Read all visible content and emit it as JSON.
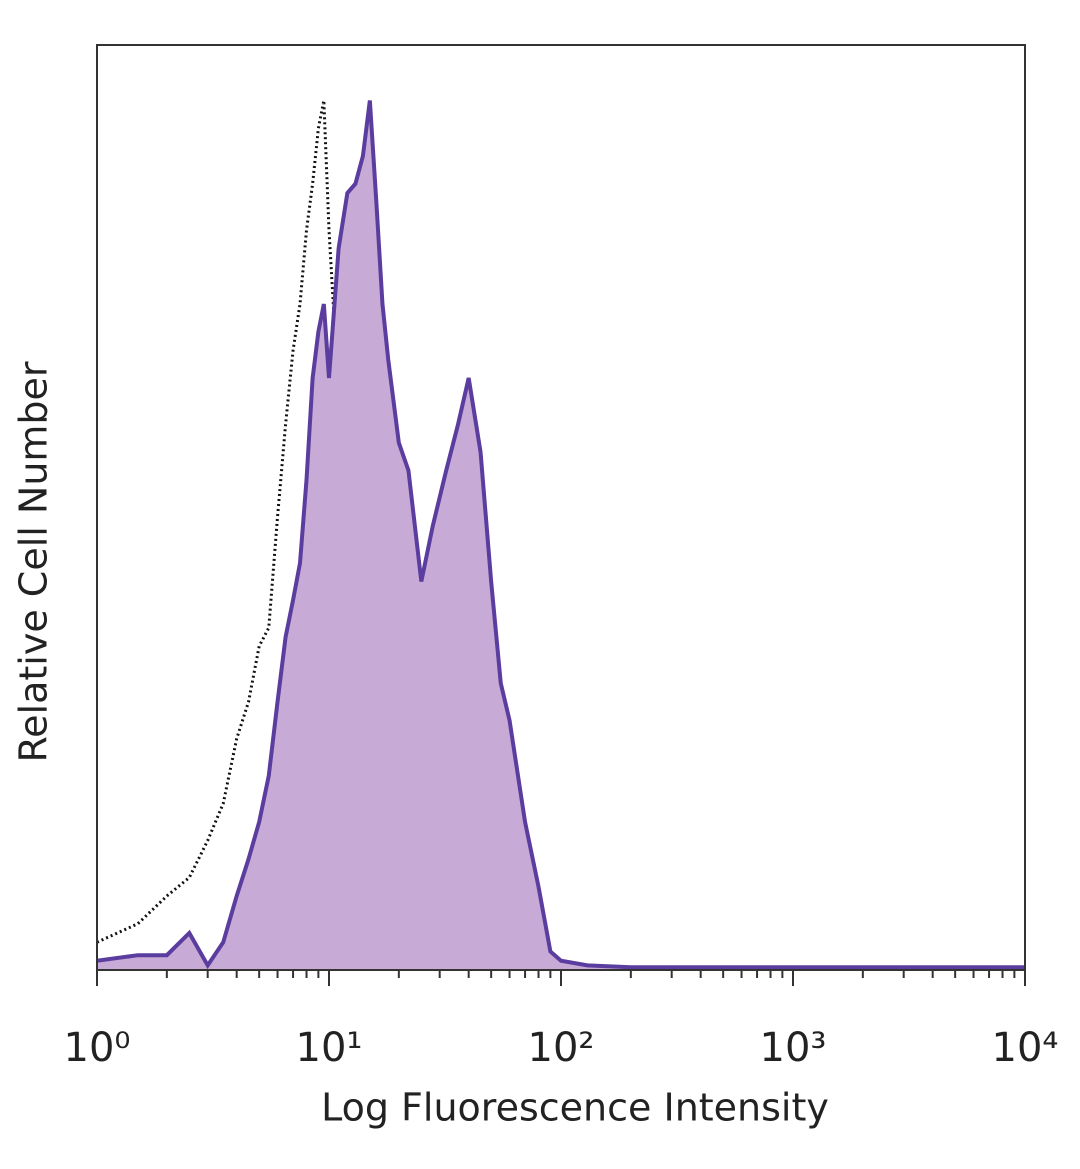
{
  "chart_data": {
    "type": "histogram-overlay",
    "xlabel": "Log Fluorescence Intensity",
    "ylabel": "Relative Cell Number",
    "xscale": "log",
    "xlim": [
      1,
      10000
    ],
    "ylim": [
      0,
      100
    ],
    "xticks": [
      {
        "value": 1,
        "label": "10⁰"
      },
      {
        "value": 10,
        "label": "10¹"
      },
      {
        "value": 100,
        "label": "10²"
      },
      {
        "value": 1000,
        "label": "10³"
      },
      {
        "value": 10000,
        "label": "10⁴"
      }
    ],
    "xminorticks": [
      2,
      3,
      4,
      5,
      6,
      7,
      8,
      9,
      20,
      30,
      40,
      50,
      60,
      70,
      80,
      90,
      200,
      300,
      400,
      500,
      600,
      700,
      800,
      900,
      2000,
      3000,
      4000,
      5000,
      6000,
      7000,
      8000,
      9000
    ],
    "series": [
      {
        "color": "#111111",
        "dash": true,
        "fill": null,
        "x": [
          1,
          1.5,
          2,
          2.5,
          3,
          3.5,
          4,
          4.5,
          5,
          5.5,
          6,
          6.5,
          7,
          7.5,
          8,
          8.5,
          9,
          9.5,
          10,
          11,
          12,
          13,
          14,
          15,
          16.6,
          18.3,
          20,
          27,
          50,
          100,
          1000,
          10000
        ],
        "values": [
          3,
          5,
          8,
          10,
          14,
          18,
          25,
          29,
          35,
          37,
          49,
          59,
          67,
          72,
          80,
          85,
          91,
          94,
          80,
          62,
          53,
          45,
          36,
          21,
          14,
          9,
          1,
          0.5,
          0.3,
          0.3,
          0.3,
          0.3
        ]
      },
      {
        "color": "#5a3d9e",
        "dash": false,
        "fill": "#c8aad6",
        "x": [
          1,
          1.5,
          2,
          2.5,
          3,
          3.5,
          4,
          4.5,
          5,
          5.5,
          6,
          6.5,
          7,
          7.5,
          8,
          8.5,
          9,
          9.5,
          10,
          11,
          12,
          13,
          14,
          15,
          16,
          17,
          18,
          20,
          22,
          25,
          28,
          32,
          36,
          40,
          45,
          50,
          55,
          60,
          70,
          80,
          90,
          100,
          130,
          200,
          10000
        ],
        "values": [
          1,
          1.6,
          1.6,
          4,
          0.5,
          3,
          8,
          12,
          16,
          21,
          29,
          36,
          40,
          44,
          53,
          64,
          69,
          72,
          64,
          78,
          84,
          85,
          88,
          94,
          83,
          72,
          66,
          57,
          54,
          42,
          48,
          54,
          59,
          64,
          56,
          42,
          31,
          27,
          16,
          9,
          2,
          1,
          0.5,
          0.3,
          0.3
        ]
      }
    ]
  }
}
